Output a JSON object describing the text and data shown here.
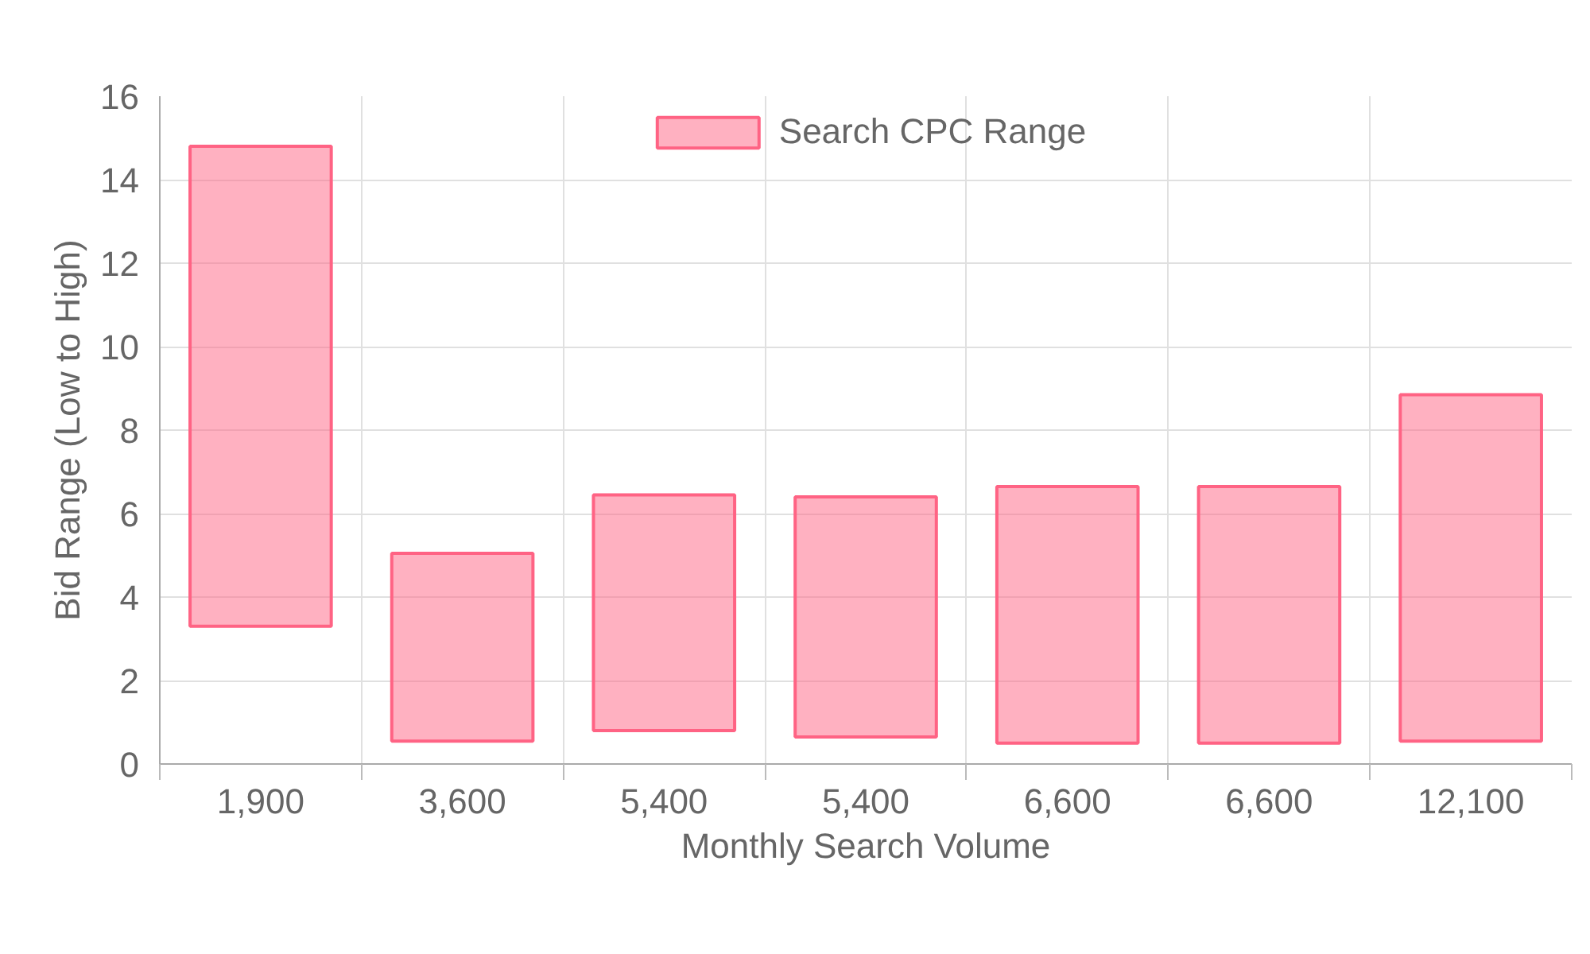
{
  "chart_data": {
    "type": "bar",
    "xlabel": "Monthly Search Volume",
    "ylabel": "Bid Range (Low to High)",
    "categories": [
      "1,900",
      "3,600",
      "5,400",
      "5,400",
      "6,600",
      "6,600",
      "12,100"
    ],
    "series": [
      {
        "name": "Search CPC Range",
        "color": "#ff6384",
        "values": [
          11.5,
          4.5,
          5.65,
          5.75,
          6.15,
          6.15,
          8.3
        ],
        "base": [
          3.3,
          0.55,
          0.8,
          0.65,
          0.5,
          0.5,
          0.55
        ]
      }
    ],
    "ylim": [
      0,
      16
    ],
    "yticks": [
      0,
      2,
      4,
      6,
      8,
      10,
      12,
      14,
      16
    ],
    "grid": true,
    "legend": "top"
  }
}
